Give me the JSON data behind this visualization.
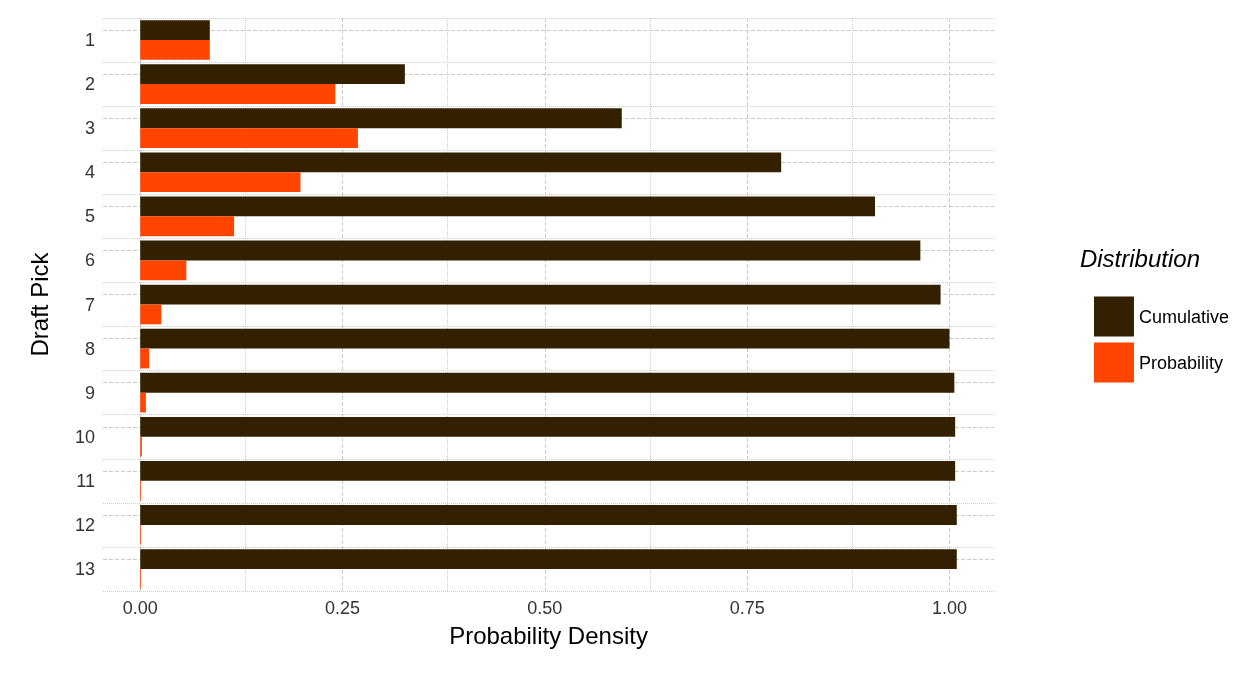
{
  "chart_data": {
    "type": "bar",
    "orientation": "horizontal",
    "xlabel": "Probability Density",
    "ylabel": "Draft Pick",
    "legend_title": "Distribution",
    "categories": [
      "1",
      "2",
      "3",
      "4",
      "5",
      "6",
      "7",
      "8",
      "9",
      "10",
      "11",
      "12",
      "13"
    ],
    "series": [
      {
        "name": "Cumulative",
        "color": "#332000",
        "values": [
          0.086,
          0.327,
          0.595,
          0.792,
          0.908,
          0.964,
          0.989,
          1.0,
          1.006,
          1.007,
          1.007,
          1.009,
          1.009
        ]
      },
      {
        "name": "Probability",
        "color": "#ff4500",
        "values": [
          0.086,
          0.241,
          0.269,
          0.198,
          0.116,
          0.057,
          0.026,
          0.011,
          0.007,
          0.002,
          0.001,
          0.001,
          0.001
        ]
      }
    ],
    "xlim": [
      -0.046,
      1.055
    ],
    "xticks": [
      {
        "value": 0,
        "label": "0.00"
      },
      {
        "value": 0.25,
        "label": "0.25"
      },
      {
        "value": 0.5,
        "label": "0.50"
      },
      {
        "value": 0.75,
        "label": "0.75"
      },
      {
        "value": 1,
        "label": "1.00"
      }
    ],
    "grid": true,
    "legend": "right"
  }
}
